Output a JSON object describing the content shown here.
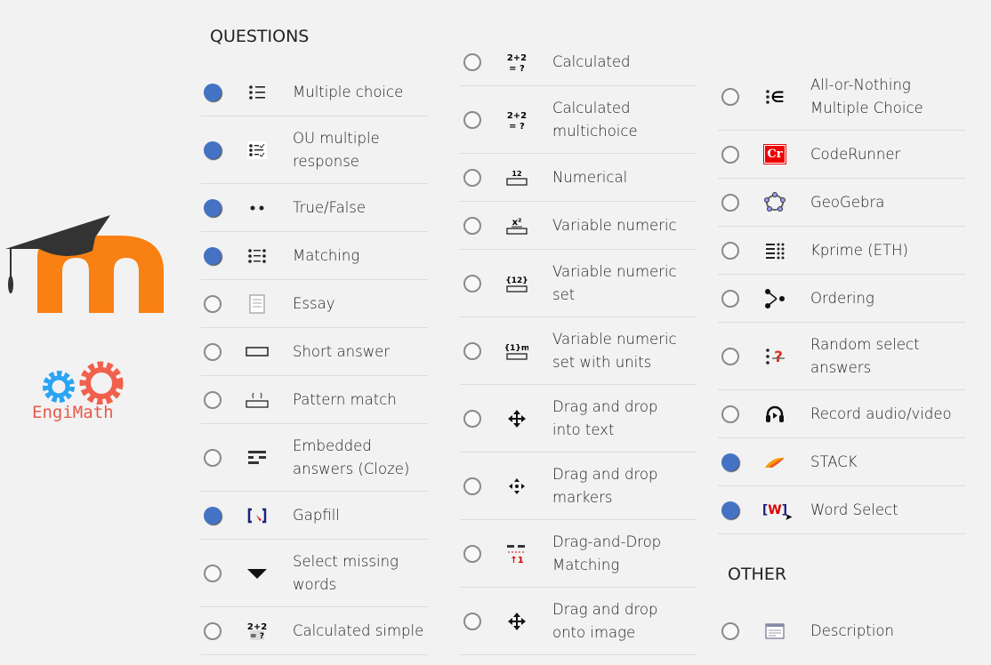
{
  "logos": {
    "moodle": "m",
    "engimath": "EngiMath"
  },
  "colors": {
    "selected": "#4472c4",
    "moodle_orange": "#f98012",
    "gear_blue": "#2aa4f4",
    "gear_red": "#f0604d"
  },
  "sections": {
    "questions": "QUESTIONS",
    "other": "OTHER"
  },
  "col1": [
    {
      "label": "Multiple choice",
      "selected": true,
      "icon": "list-icon"
    },
    {
      "label": "OU multiple response",
      "selected": true,
      "icon": "checklist-icon"
    },
    {
      "label": "True/False",
      "selected": true,
      "icon": "two-dots-icon"
    },
    {
      "label": "Matching",
      "selected": true,
      "icon": "matching-icon"
    },
    {
      "label": "Essay",
      "selected": false,
      "icon": "document-icon"
    },
    {
      "label": "Short answer",
      "selected": false,
      "icon": "textbox-icon"
    },
    {
      "label": "Pattern match",
      "selected": false,
      "icon": "pattern-icon"
    },
    {
      "label": "Embedded answers (Cloze)",
      "selected": false,
      "icon": "cloze-icon"
    },
    {
      "label": "Gapfill",
      "selected": true,
      "icon": "gapfill-icon"
    },
    {
      "label": "Select missing words",
      "selected": false,
      "icon": "triangle-down-icon"
    },
    {
      "label": "Calculated simple",
      "selected": false,
      "icon": "calculator-icon"
    }
  ],
  "col2": [
    {
      "label": "Calculated",
      "selected": false,
      "icon": "calculated-icon"
    },
    {
      "label": "Calculated multichoice",
      "selected": false,
      "icon": "calculated-icon"
    },
    {
      "label": "Numerical",
      "selected": false,
      "icon": "numerical-icon"
    },
    {
      "label": "Variable numeric",
      "selected": false,
      "icon": "variable-numeric-icon"
    },
    {
      "label": "Variable numeric set",
      "selected": false,
      "icon": "variable-set-icon"
    },
    {
      "label": "Variable numeric set with units",
      "selected": false,
      "icon": "variable-units-icon"
    },
    {
      "label": "Drag and drop into text",
      "selected": false,
      "icon": "move-icon"
    },
    {
      "label": "Drag and drop markers",
      "selected": false,
      "icon": "markers-icon"
    },
    {
      "label": "Drag-and-Drop Matching",
      "selected": false,
      "icon": "dnd-matching-icon"
    },
    {
      "label": "Drag and drop onto image",
      "selected": false,
      "icon": "move-icon"
    }
  ],
  "col3": [
    {
      "label": "All-or-Nothing Multiple Choice",
      "selected": false,
      "icon": "all-or-nothing-icon"
    },
    {
      "label": "CodeRunner",
      "selected": false,
      "icon": "coderunner-icon",
      "icon_text": "Cr"
    },
    {
      "label": "GeoGebra",
      "selected": false,
      "icon": "geogebra-icon"
    },
    {
      "label": "Kprime (ETH)",
      "selected": false,
      "icon": "kprime-icon"
    },
    {
      "label": "Ordering",
      "selected": false,
      "icon": "ordering-icon"
    },
    {
      "label": "Random select answers",
      "selected": false,
      "icon": "random-icon"
    },
    {
      "label": "Record audio/video",
      "selected": false,
      "icon": "record-icon"
    },
    {
      "label": "STACK",
      "selected": true,
      "icon": "stack-icon"
    },
    {
      "label": "Word Select",
      "selected": true,
      "icon": "word-select-icon",
      "icon_text": "W"
    }
  ],
  "other": [
    {
      "label": "Description",
      "selected": false,
      "icon": "description-icon"
    }
  ],
  "icon_texts": {
    "calc": "2+2\n= ?",
    "num": "12",
    "var": "x²",
    "set": "{12}",
    "units": "{1}m"
  }
}
